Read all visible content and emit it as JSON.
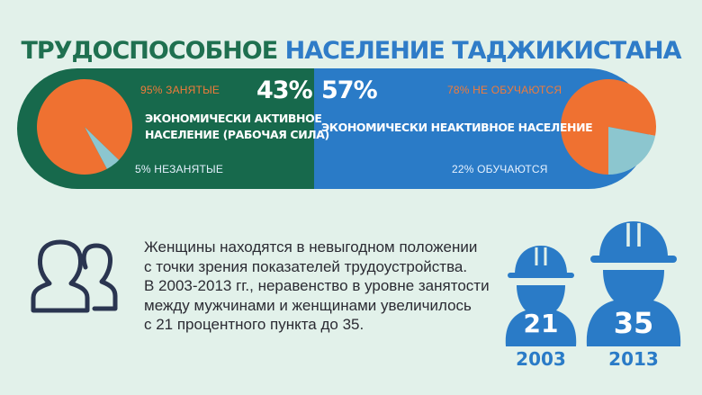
{
  "title": {
    "part1": "ТРУДОСПОСОБНОЕ",
    "part2": "НАСЕЛЕНИЕ ТАДЖИКИСТАНА"
  },
  "colors": {
    "green": "#17694c",
    "blue": "#2a7bc7",
    "orange": "#ef7131",
    "teal_light": "#8cc6cf",
    "background": "#e2f1ea"
  },
  "left_panel": {
    "share": "43%",
    "desc_line1": "ЭКОНОМИЧЕСКИ АКТИВНОЕ",
    "desc_line2": "НАСЕЛЕНИЕ (РАБОЧАЯ СИЛА)"
  },
  "right_panel": {
    "share": "57%",
    "desc": "ЭКОНОМИЧЕСКИ НЕАКТИВНОЕ НАСЕЛЕНИЕ"
  },
  "chart_data": [
    {
      "type": "pie",
      "title": "",
      "slices": [
        {
          "label": "95% ЗАНЯТЫЕ",
          "value": 95,
          "color": "#ef7131"
        },
        {
          "label": "5% НЕЗАНЯТЫЕ",
          "value": 5,
          "color": "#8cc6cf"
        }
      ]
    },
    {
      "type": "pie",
      "title": "",
      "slices": [
        {
          "label": "78% НЕ ОБУЧАЮТСЯ",
          "value": 78,
          "color": "#ef7131"
        },
        {
          "label": "22% ОБУЧАЮТСЯ",
          "value": 22,
          "color": "#8cc6cf"
        }
      ]
    }
  ],
  "paragraph": [
    "Женщины находятся в невыгодном положении",
    "с точки зрения показателей трудоустройства.",
    "В 2003-2013 гг., неравенство в уровне занятости",
    "между мужчинами и женщинами увеличилось",
    "с 21 процентного пункта до 35."
  ],
  "workers": [
    {
      "value": "21",
      "year": "2003"
    },
    {
      "value": "35",
      "year": "2013"
    }
  ]
}
